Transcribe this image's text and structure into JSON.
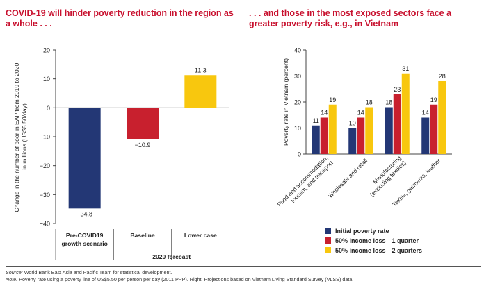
{
  "chart_data": [
    {
      "type": "bar",
      "title": "COVID-19 will hinder poverty reduction in the region as a whole . . .",
      "ylabel": "Change in the number of poor in EAP from 2019 to 2020, in millions (US$5.50/day)",
      "ylim": [
        -40,
        20
      ],
      "yticks": [
        20,
        10,
        0,
        -10,
        -20,
        -30,
        -40
      ],
      "categories": [
        "Pre-COVID19 growth scenario",
        "Baseline",
        "Lower case"
      ],
      "values": [
        -34.8,
        -10.9,
        11.3
      ],
      "value_labels": [
        "−34.8",
        "−10.9",
        "11.3"
      ],
      "colors": [
        "#233775",
        "#c8202e",
        "#f8c70e"
      ],
      "group_label": "2020 forecast",
      "grid": false
    },
    {
      "type": "bar",
      "title": ". . . and those in the most exposed sectors face a greater poverty risk, e.g., in Vietnam",
      "ylabel": "Poverty rate in Vietnam (percent)",
      "ylim": [
        0,
        40
      ],
      "yticks": [
        0,
        10,
        20,
        30,
        40
      ],
      "categories": [
        "Food and accommodation, tourism, and transport",
        "Wholesale and retail",
        "Manufacturing (excluding textiles)",
        "Textile, garments, leather"
      ],
      "series": [
        {
          "name": "Initial poverty rate",
          "color": "#233775",
          "values": [
            11,
            10,
            18,
            14
          ]
        },
        {
          "name": "50% income loss—1 quarter",
          "color": "#c8202e",
          "values": [
            14,
            14,
            23,
            19
          ]
        },
        {
          "name": "50% income loss—2 quarters",
          "color": "#f8c70e",
          "values": [
            19,
            18,
            31,
            28
          ]
        }
      ],
      "legend_position": "bottom",
      "grid": false
    }
  ],
  "source": {
    "source_label": "Source:",
    "source_text": "World Bank East Asia and Pacific Team for statistical development.",
    "note_label": "Note:",
    "note_text": "Poverty rate using a poverty line of US$5.50 per person per day (2011 PPP). Right: Projections based on Vietnam Living Standard Survey (VLSS) data."
  }
}
